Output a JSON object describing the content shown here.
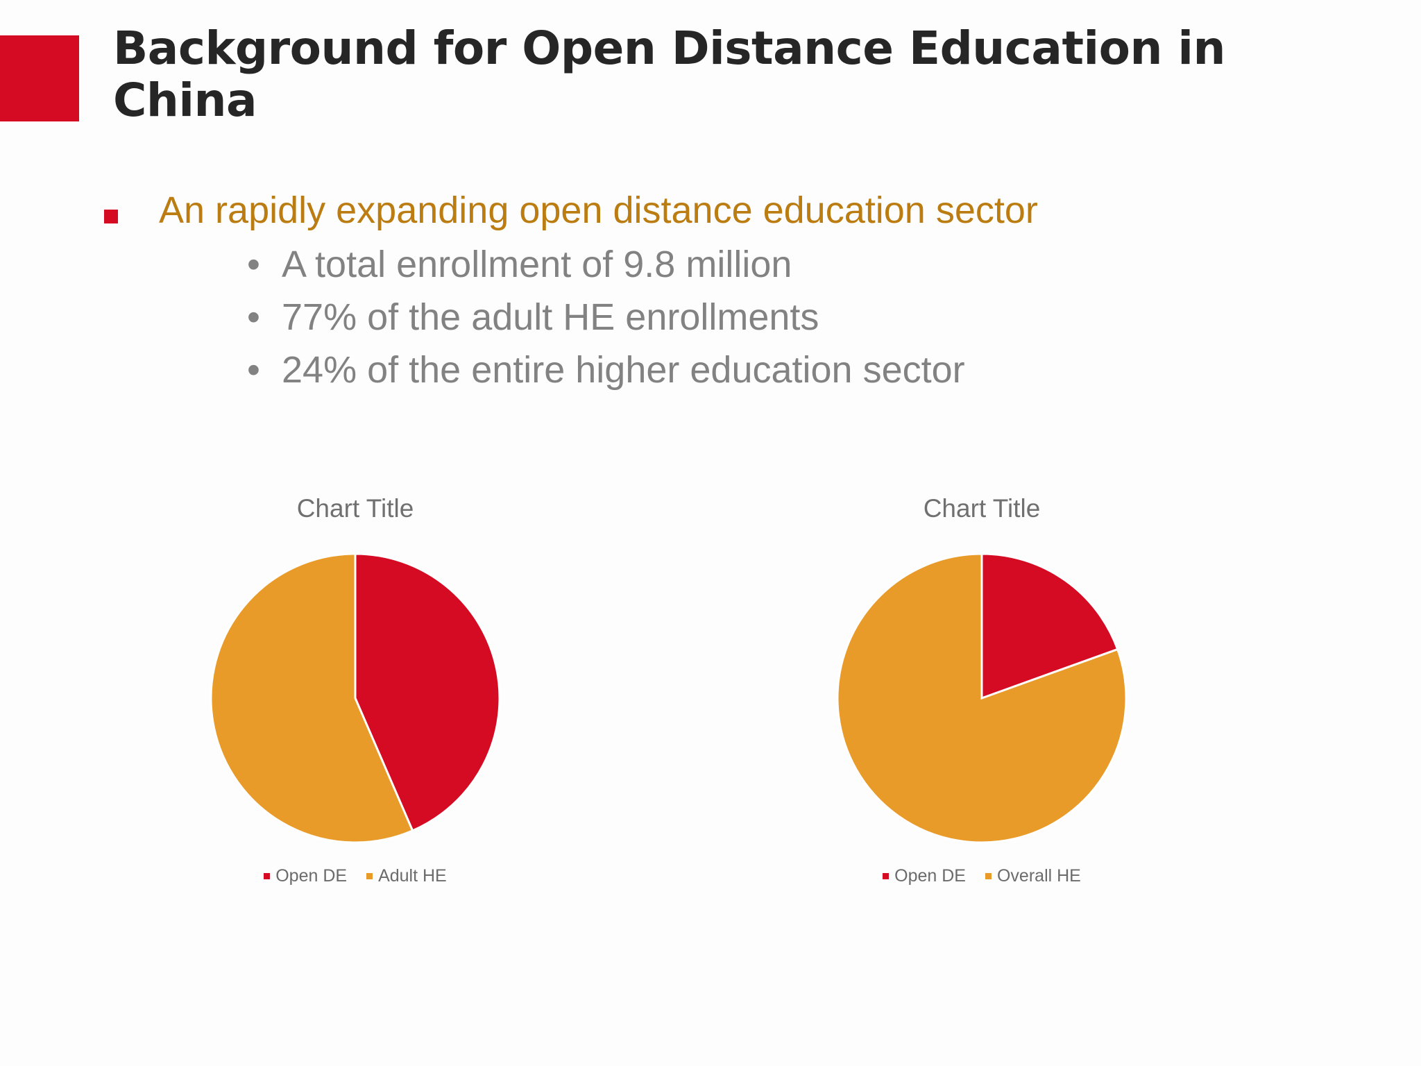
{
  "slide": {
    "title": "Background for Open Distance Education in China",
    "accent_color": "#d50b24"
  },
  "bullets": {
    "main": "An rapidly expanding open distance education sector",
    "sub": [
      "A total enrollment of 9.8 million",
      "77% of the adult HE enrollments",
      "24% of the entire higher education sector"
    ],
    "sub_marker": "•"
  },
  "chart_data": [
    {
      "type": "pie",
      "title": "Chart Title",
      "categories": [
        "Open DE",
        "Adult HE"
      ],
      "values": [
        43.5,
        56.5
      ],
      "colors": [
        "#d50b24",
        "#e99b2a"
      ],
      "legend": "bottom"
    },
    {
      "type": "pie",
      "title": "Chart Title",
      "categories": [
        "Open DE",
        "Overall HE"
      ],
      "values": [
        19.5,
        80.5
      ],
      "colors": [
        "#d50b24",
        "#e99b2a"
      ],
      "legend": "bottom"
    }
  ]
}
